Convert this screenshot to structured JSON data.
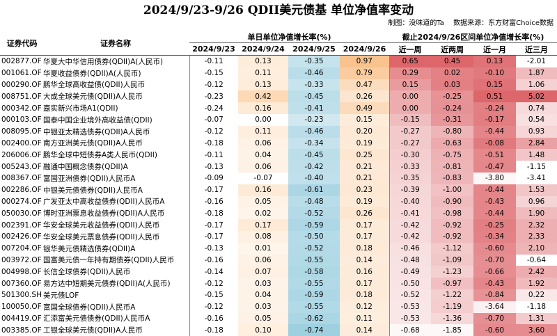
{
  "title": "2024/9/23-9/26 QDII美元债基 单位净值率变动",
  "credits": {
    "author": "制图：没味道的Ta",
    "source": "数据来源：东方财富Choice数据"
  },
  "headers": {
    "code": "证券代码",
    "name": "证券名称",
    "group_daily": "单日单位净值增长率(%)",
    "group_interval": "截止2024/9/26区间单位净值增长率(%)",
    "days": [
      "2024/9/23",
      "2024/9/24",
      "2024/9/25",
      "2024/9/26"
    ],
    "periods": [
      "近一周",
      "近两周",
      "近一月",
      "近三月"
    ]
  },
  "colors": {
    "d23": "#ffffff",
    "d24_pos": "#fdd9b5",
    "d25_neg": "#9fd0e0",
    "d26_pos": "#f9c38e",
    "interval_pos": "#d9555a",
    "interval_neg": "#ffffff"
  },
  "rows": [
    {
      "code": "002877.OF",
      "name": "华夏大中华信用债券(QDII)A(人民币)",
      "d": [
        -0.11,
        0.13,
        -0.35,
        0.97
      ],
      "p": [
        0.65,
        0.45,
        0.13,
        -2.01
      ]
    },
    {
      "code": "001061.OF",
      "name": "华夏收益债券(QDII)A(人民币)",
      "d": [
        -0.15,
        0.11,
        -0.46,
        0.79
      ],
      "p": [
        0.29,
        0.02,
        -0.1,
        1.87
      ]
    },
    {
      "code": "000290.OF",
      "name": "鹏华全球高收益债(QDII)人民币",
      "d": [
        -0.12,
        0.13,
        -0.33,
        0.47
      ],
      "p": [
        0.15,
        0.03,
        0.15,
        1.06
      ]
    },
    {
      "code": "008751.OF",
      "name": "大成全球美元债(QDII)A人民币",
      "d": [
        -0.23,
        0.42,
        -0.45,
        0.26
      ],
      "p": [
        0.0,
        -0.25,
        0.51,
        5.02
      ]
    },
    {
      "code": "000342.OF",
      "name": "嘉实新兴市场A1(QDII)",
      "d": [
        -0.24,
        0.16,
        -0.41,
        0.49
      ],
      "p": [
        0.0,
        -0.24,
        -0.24,
        0.74
      ]
    },
    {
      "code": "000103.OF",
      "name": "国泰中国企业境外高收益债(QDII)",
      "d": [
        -0.07,
        0.0,
        -0.23,
        0.15
      ],
      "p": [
        -0.15,
        -0.31,
        -0.17,
        0.54
      ]
    },
    {
      "code": "008095.OF",
      "name": "中银亚太精选债券(QDII)A人民币",
      "d": [
        -0.12,
        0.11,
        -0.46,
        0.2
      ],
      "p": [
        -0.27,
        -0.8,
        -0.44,
        0.93
      ]
    },
    {
      "code": "002400.OF",
      "name": "南方亚洲美元债(QDII)A人民币",
      "d": [
        -0.18,
        0.06,
        -0.34,
        0.19
      ],
      "p": [
        -0.27,
        -0.63,
        -0.08,
        2.84
      ]
    },
    {
      "code": "206006.OF",
      "name": "鹏华全球中短债券A类人民币(QDII)",
      "d": [
        -0.11,
        0.04,
        -0.45,
        0.25
      ],
      "p": [
        -0.3,
        -0.75,
        -0.51,
        1.48
      ]
    },
    {
      "code": "005243.OF",
      "name": "融通中国概念债券(QDII)A",
      "d": [
        -0.13,
        0.06,
        -0.42,
        0.21
      ],
      "p": [
        -0.33,
        -0.81,
        -0.47,
        -1.15
      ]
    },
    {
      "code": "008367.OF",
      "name": "富国亚洲债券(QDII)人民币A",
      "d": [
        -0.09,
        -0.07,
        -0.4,
        0.21
      ],
      "p": [
        -0.35,
        -0.83,
        -3.8,
        -3.41
      ]
    },
    {
      "code": "002286.OF",
      "name": "中银美元债债券(QDII)人民币A",
      "d": [
        -0.17,
        0.16,
        -0.61,
        0.23
      ],
      "p": [
        -0.39,
        -1.0,
        -0.44,
        1.53
      ]
    },
    {
      "code": "000274.OF",
      "name": "广发亚太中高收益债券(QDII)人民币A",
      "d": [
        -0.16,
        0.05,
        -0.48,
        0.19
      ],
      "p": [
        -0.4,
        -0.9,
        -0.43,
        0.96
      ]
    },
    {
      "code": "050030.OF",
      "name": "博时亚洲票息收益债券(QDII)A人民币",
      "d": [
        -0.18,
        0.02,
        -0.52,
        0.26
      ],
      "p": [
        -0.41,
        -0.98,
        -0.44,
        1.9
      ]
    },
    {
      "code": "002391.OF",
      "name": "华安全球美元收益债券(QDII)人民币",
      "d": [
        -0.17,
        0.17,
        -0.59,
        0.17
      ],
      "p": [
        -0.42,
        -0.92,
        -0.25,
        2.32
      ]
    },
    {
      "code": "002426.OF",
      "name": "华安全球美元票息债券(QDII)人民币",
      "d": [
        -0.17,
        0.08,
        -0.5,
        0.17
      ],
      "p": [
        -0.42,
        -0.92,
        -0.34,
        2.33
      ]
    },
    {
      "code": "007204.OF",
      "name": "银华美元债精选债券(QDII)A",
      "d": [
        -0.13,
        0.01,
        -0.52,
        0.18
      ],
      "p": [
        -0.46,
        -1.12,
        -0.6,
        2.1
      ]
    },
    {
      "code": "003972.OF",
      "name": "国富美元债一年持有期债券(QDII)人民币",
      "d": [
        -0.16,
        0.06,
        -0.55,
        0.14
      ],
      "p": [
        -0.48,
        -1.09,
        -0.7,
        -0.64
      ]
    },
    {
      "code": "004998.OF",
      "name": "长信全球债券(QDII)人民币",
      "d": [
        -0.14,
        0.07,
        -0.58,
        0.16
      ],
      "p": [
        -0.49,
        -1.23,
        -0.66,
        2.42
      ]
    },
    {
      "code": "007360.OF",
      "name": "易方达中短期美元债券(QDII)A(人民币)",
      "d": [
        -0.12,
        0.03,
        -0.55,
        0.17
      ],
      "p": [
        -0.5,
        -0.97,
        -0.43,
        1.92
      ]
    },
    {
      "code": "501300.SH",
      "name": "美元债LOF",
      "d": [
        -0.15,
        0.04,
        -0.59,
        0.18
      ],
      "p": [
        -0.52,
        -1.22,
        -0.84,
        0.22
      ]
    },
    {
      "code": "100050.OF",
      "name": "富国全球债券(QDII)人民币A",
      "d": [
        -0.12,
        0.03,
        -0.55,
        0.12
      ],
      "p": [
        -0.53,
        -1.19,
        -3.64,
        -1.18
      ]
    },
    {
      "code": "004419.OF",
      "name": "汇添富美元债债券(QDII)人民币A",
      "d": [
        -0.16,
        0.05,
        -0.62,
        0.11
      ],
      "p": [
        -0.53,
        -1.36,
        -0.7,
        1.31
      ]
    },
    {
      "code": "003385.OF",
      "name": "工银全球美元债(QDII)A人民币",
      "d": [
        -0.18,
        0.1,
        -0.74,
        0.14
      ],
      "p": [
        -0.68,
        -1.85,
        -0.6,
        3.6
      ]
    }
  ]
}
